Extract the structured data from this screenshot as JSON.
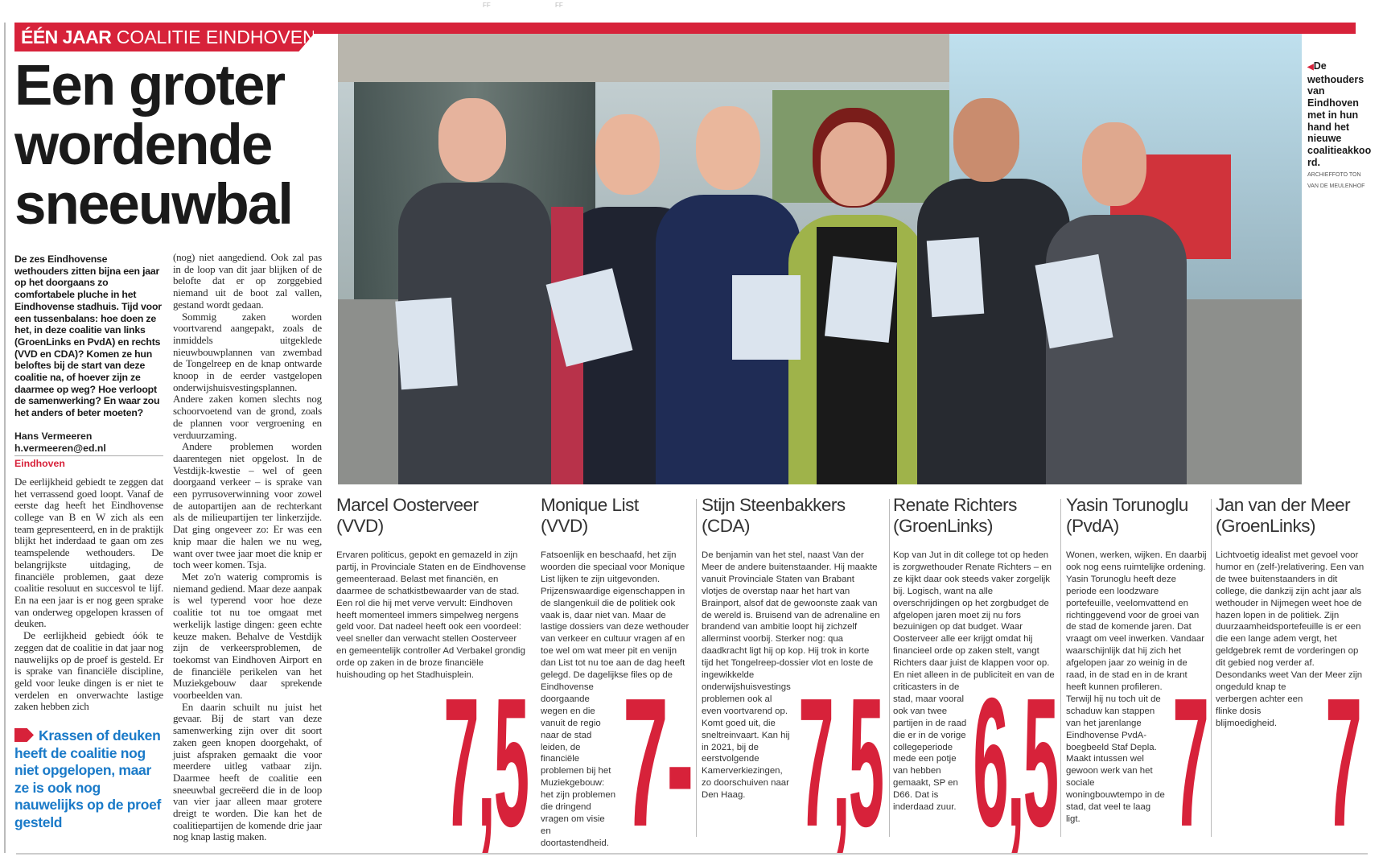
{
  "print_marks": [
    "FF",
    "FF"
  ],
  "kicker": {
    "bold": "ÉÉN JAAR",
    "rest": "COALITIE EINDHOVEN"
  },
  "headline": [
    "Een groter",
    "wordende",
    "sneeuwbal"
  ],
  "intro": "De zes Eindhovense wethouders zitten bijna een jaar op het doorgaans zo comfortabele pluche in het Eindhovense stadhuis. Tijd voor een tussenbalans: hoe doen ze het, in deze coalitie van links (GroenLinks en PvdA) en rechts (VVD en CDA)? Komen ze hun beloftes bij de start van deze coalitie na, of hoever zijn ze daarmee op weg? Hoe verloopt de samenwerking? En waar zou het anders of beter moeten?",
  "byline": {
    "author": "Hans Vermeeren",
    "email": "h.vermeeren@ed.nl",
    "dateline": "Eindhoven"
  },
  "body_col1": [
    "De eerlijkheid gebiedt te zeggen dat het verrassend goed loopt. Vanaf de eerste dag heeft het Eindhovense college van B en W zich als een team gepresenteerd, en in de praktijk blijkt het inderdaad te gaan om zes teamspelende wethouders. De belangrijkste uitdaging, de financiële problemen, gaat deze coalitie resoluut en succesvol te lijf. En na een jaar is er nog geen sprake van onderweg opgelopen krassen of deuken.",
    "De eerlijkheid gebiedt óók te zeggen dat de coalitie in dat jaar nog nauwelijks op de proef is gesteld. Er is sprake van financiële discipline, geld voor leuke dingen is er niet te verdelen en onverwachte lastige zaken hebben zich"
  ],
  "body_col2": [
    "(nog) niet aangediend.  Ook zal pas in de loop van dit jaar blijken of de belofte dat er op zorggebied niemand uit de boot zal vallen, gestand wordt gedaan.",
    "Sommig zaken worden voortvarend aangepakt, zoals de inmiddels uitgeklede nieuwbouwplannen van zwembad de Tongelreep en de knap ontwarde knoop in de eerder vastgelopen onderwijshuisvestingsplannen. Andere zaken komen slechts nog schoorvoetend van de grond, zoals de plannen voor vergroening en verduurzaming.",
    "Andere problemen worden daarentegen niet opgelost. In de Vestdijk-kwestie – wel of geen doorgaand verkeer – is sprake van een pyrrusoverwinning voor zowel de autopartijen aan de rechterkant als de milieupartijen ter linkerzijde. Dat ging ongeveer zo: Er was een knip maar die halen we nu weg, want over twee jaar moet die knip er toch weer komen. Tsja.",
    "Met zo'n waterig compromis is niemand gediend. Maar deze aanpak is wel typerend voor hoe deze coalitie tot nu toe omgaat met werkelijk lastige dingen: geen echte keuze maken. Behalve de Vestdijk zijn de verkeersproblemen, de toekomst van Eindhoven Airport en de financiële perikelen van het Muziekgebouw daar sprekende voorbeelden van.",
    "En daarin schuilt nu juist het gevaar. Bij de start van deze samenwerking zijn over dit soort zaken geen knopen doorgehakt, of juist afspraken gemaakt die voor meerdere uitleg vatbaar zijn. Daarmee heeft de coalitie een sneeuwbal gecreëerd die in de loop van vier jaar alleen maar grotere dreigt te worden. Die kan het de coalitiepartijen de komende drie jaar nog knap lastig maken."
  ],
  "pullquote": "Krassen of deuken heeft de coalitie nog niet opgelopen, maar ze is ook nog nauwelijks op de proef gesteld",
  "photo_caption": {
    "text": "De wethouders van Eindhoven met in hun hand het nieuwe coalitieakkoord.",
    "credit": "ARCHIEFFOTO TON VAN DE MEULENHOF"
  },
  "candidates": [
    {
      "name": "Marcel Oosterveer",
      "party": "(VVD)",
      "grade": "7,5",
      "text": "Ervaren politicus, gepokt en gemazeld in zijn partij, in Provinciale Staten en de Eindhovense gemeenteraad. Belast met financiën, en daarmee de schatkistbewaarder van de stad. Een rol die hij met verve vervult: Eindhoven heeft momenteel immers simpelweg nergens geld voor. Dat nadeel heeft ook een voordeel: veel sneller dan verwacht stellen Oosterveer en gemeentelijk controller Ad Verbakel grondig orde op zaken in de broze financiële huishouding op het Stadhuisplein."
    },
    {
      "name": "Monique List",
      "party": "(VVD)",
      "grade": "7-",
      "text": "Fatsoenlijk en beschaafd, het zijn woorden die speciaal voor Monique List lijken te zijn uitgevonden. Prijzenswaardige eigenschappen in de slangenkuil die de politiek ook vaak is, daar niet van. Maar de lastige dossiers van deze wethouder van verkeer en cultuur vragen af en toe wel om wat meer pit en venijn dan List tot nu toe aan de dag heeft gelegd. De dagelijkse files op de Eindhovense doorgaande wegen en die vanuit de regio naar de stad leiden, de financiële problemen bij het Muziekgebouw: het zijn problemen die dringend vragen om visie en doortastendheid."
    },
    {
      "name": "Stijn Steenbakkers",
      "party": "(CDA)",
      "grade": "7,5",
      "text": "De benjamin van het stel, naast Van der Meer de andere buitenstaander. Hij maakte vanuit Provinciale Staten van Brabant vlotjes de overstap naar het hart van Brainport, alsof dat de gewoonste zaak van de wereld is. Bruisend van de adrenaline en brandend van ambitie loopt hij zichzelf allerminst voorbij. Sterker nog: qua daadkracht ligt hij op kop. Hij trok in korte tijd het Tongelreep-dossier vlot en loste de ingewikkelde onderwijshuisvestingsproblemen ook al even voortvarend op. Komt goed uit, die sneltreinvaart. Kan hij in 2021, bij de eerstvolgende Kamerverkiezingen, zo doorschuiven naar Den Haag."
    },
    {
      "name": "Renate Richters",
      "party": "(GroenLinks)",
      "grade": "6,5",
      "text": "Kop van Jut in dit college tot op heden is zorgwethouder Renate Richters – en ze kijkt daar ook steeds vaker zorgelijk bij. Logisch, want na alle overschrijdingen op het zorgbudget de afgelopen jaren moet zij nu fors bezuinigen op dat budget. Waar Oosterveer alle eer krijgt omdat hij financieel orde op zaken stelt, vangt Richters daar juist de klappen voor op. En niet alleen in de publiciteit en van de criticasters in de stad, maar vooral ook van twee partijen in de raad die er in de vorige collegeperiode mede een potje van hebben gemaakt, SP en D66. Dat is inderdaad zuur."
    },
    {
      "name": "Yasin Torunoglu",
      "party": "(PvdA)",
      "grade": "7",
      "text": "Wonen, werken, wijken. En daarbij ook nog eens ruimtelijke ordening. Yasin Torunoglu heeft deze periode een loodzware portefeuille, veelomvattend en richtinggevend voor de groei van de stad de komende jaren. Dat vraagt om veel inwerken. Vandaar waarschijnlijk dat hij zich het afgelopen jaar zo weinig in de raad, in de stad en in de krant heeft kunnen profileren. Terwijl hij nu toch uit de schaduw kan stappen van het jarenlange Eindhovense PvdA-boegbeeld Staf Depla. Maakt intussen wel gewoon werk van het sociale woningbouwtempo in de stad, dat veel te laag ligt."
    },
    {
      "name": "Jan van der Meer",
      "party": "(GroenLinks)",
      "grade": "7",
      "text": "Lichtvoetig idealist met gevoel voor humor en (zelf-)relativering. Een van de twee buitenstaanders in dit college, die dankzij zijn acht jaar als wethouder in Nijmegen weet hoe de hazen lopen in de politiek. Zijn duurzaamheidsportefeuille is er een die een lange adem vergt, het geldgebrek remt de vorderingen op dit gebied nog verder af. Desondanks weet Van der Meer zijn ongeduld knap te verbergen achter een flinke dosis blijmoedigheid."
    }
  ],
  "colors": {
    "accent_red": "#d7223a",
    "pull_blue": "#1a7ac8"
  }
}
